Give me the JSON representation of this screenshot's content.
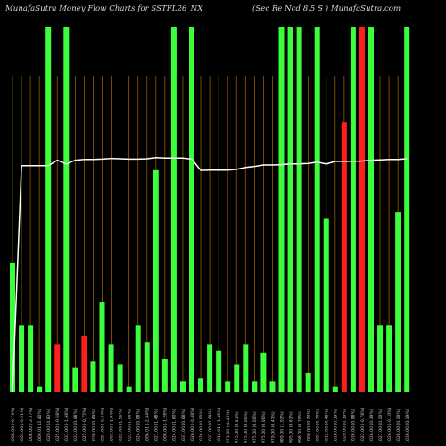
{
  "header": {
    "title": "MunafaSutra  Money Flow  Charts for SSTFL26_NX",
    "subtitle": "(Sec Re   Ncd 8.5   S  )  MunafaSutra.com"
  },
  "chart_data": {
    "type": "bar",
    "title": "MunafaSutra  Money Flow  Charts for SSTFL26_NX",
    "subtitle": "(Sec Re   Ncd 8.5   S  )  MunafaSutra.com",
    "colors": {
      "up": "#3cff3c",
      "down": "#ff1f1f",
      "vline": "#9a5a00",
      "line": "#ffffff"
    },
    "categories": [
      "1008.00 (-0.73%)",
      "1003.00 (-0.51%)",
      "1008.00 (-2.37%)",
      "1000.01 (2.40%)",
      "1029.00 (4.83%)",
      "1025.00 (-0.58%)",
      "1031.00 (-1.68%)",
      "1033.00 (0.48%)",
      "1025.00 (-0.75%)",
      "1030.00 (0.49%)",
      "1024.00 (-0.34%)",
      "1003.00 (-1.94%)",
      "1022.00 (1.56%)",
      "1023.00 (1.04%)",
      "1024.00 (0.08%)",
      "1006.01 (-2.64%)",
      "1021.00 (1.48%)",
      "1008.00 (-1.28%)",
      "1024.00 (1.60%)",
      "1031.00 (0.68%)",
      "1026.00 (-0.48%)",
      "1026.00 (0.00%)",
      "1031.00 (0.49%)",
      "1016.01 (-1.45%)",
      "971.00 (-4.43%)",
      "975.00 (0.41%)",
      "975.00 (0.00%)",
      "975.00 (0.00%)",
      "975.00 (0.00%)",
      "979.00 (0.41%)",
      "989.00 (1.02%)",
      "995.00 (0.61%)",
      "998.00 (0.30%)",
      "1000.00 (0.20%)",
      "1007.00 (0.70%)",
      "1012.00 (0.49%)",
      "1016.00 (0.39%)",
      "1020.00 (0.39%)",
      "1030.00 (0.98%)",
      "1022.00 (-0.78%)",
      "1026.00 (0.39%)",
      "1027.00 (0.10%)",
      "1026.00 (-0.10%)",
      "1028.00 (0.19%)",
      "1030.00 (0.19%)"
    ],
    "series": [
      {
        "values": [
          46,
          24,
          24,
          2,
          130,
          17,
          130,
          9,
          20,
          11,
          32,
          17,
          10,
          2,
          24,
          18,
          79,
          12,
          130,
          4,
          130,
          5,
          17,
          15,
          4,
          10,
          17,
          4,
          14,
          4,
          130,
          130,
          130,
          7,
          130,
          62,
          2,
          96,
          130,
          130,
          130,
          24,
          24,
          64,
          130
        ],
        "direction": [
          "up",
          "up",
          "up",
          "up",
          "up",
          "down",
          "up",
          "up",
          "down",
          "up",
          "up",
          "up",
          "up",
          "up",
          "up",
          "up",
          "up",
          "up",
          "up",
          "up",
          "up",
          "up",
          "up",
          "up",
          "up",
          "up",
          "up",
          "up",
          "up",
          "up",
          "up",
          "up",
          "up",
          "up",
          "up",
          "up",
          "up",
          "down",
          "up",
          "down",
          "up",
          "up",
          "up",
          "up",
          "up"
        ]
      },
      {
        "values": [
          0,
          62,
          62,
          62,
          62,
          63.5,
          62.5,
          63.5,
          63.7,
          63.7,
          63.8,
          64,
          63.9,
          63.8,
          63.8,
          63.9,
          64.2,
          64.1,
          64.1,
          64.1,
          63.8,
          60.7,
          60.8,
          60.8,
          60.8,
          61,
          61.5,
          61.8,
          62.2,
          62.2,
          62.3,
          62.5,
          62.5,
          62.6,
          63,
          62.5,
          63.2,
          63.2,
          63.2,
          63.3,
          63.5,
          63.6,
          63.7,
          63.7,
          63.9
        ]
      }
    ],
    "ylim": [
      0,
      130
    ],
    "line_ylim": [
      0,
      100
    ],
    "grid": true
  }
}
